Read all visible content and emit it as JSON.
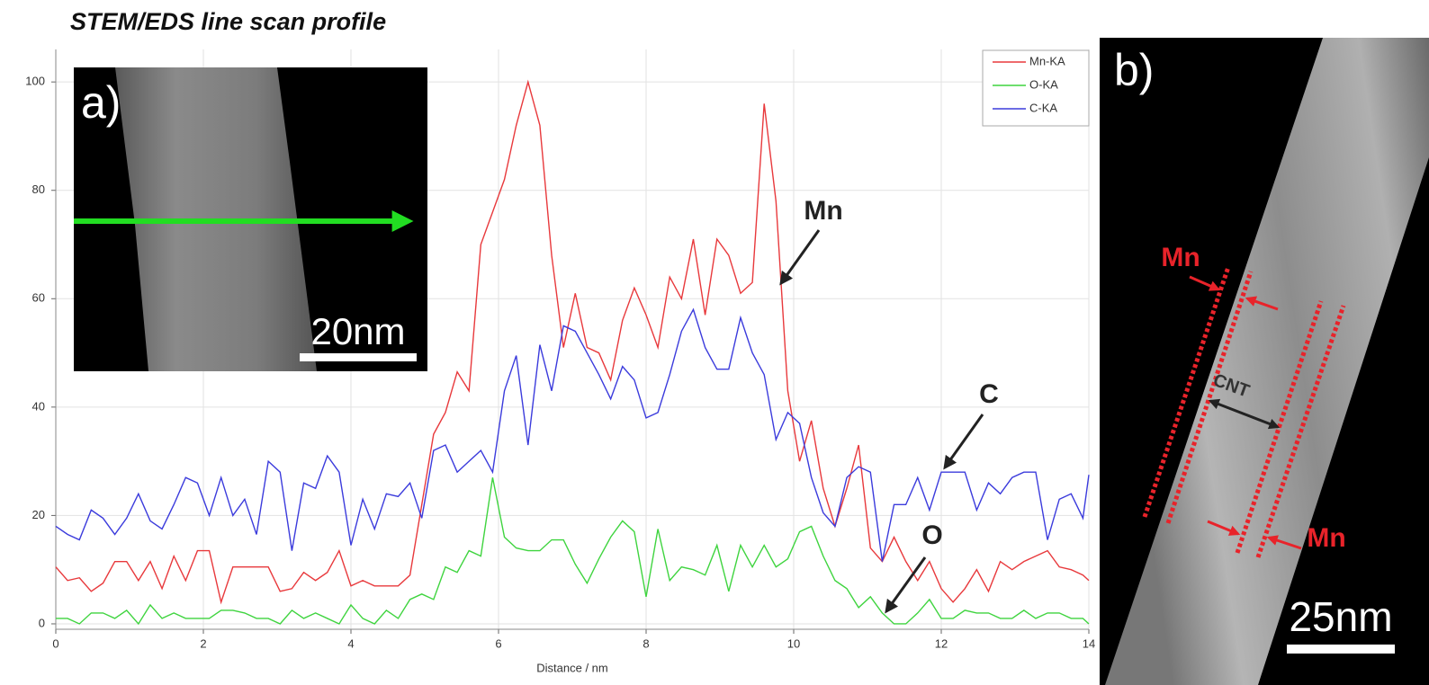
{
  "chart_data": {
    "type": "line",
    "title": "STEM/EDS line scan profile",
    "x_label": "Distance / nm",
    "xlim": [
      0,
      14
    ],
    "ylim": [
      -1,
      106
    ],
    "xticks": [
      0,
      2,
      4,
      6,
      8,
      10,
      12,
      14
    ],
    "yticks": [
      0,
      20,
      40,
      60,
      80,
      100
    ],
    "grid": true,
    "legend": "upper right",
    "x": [
      0,
      0.16,
      0.32,
      0.48,
      0.64,
      0.8,
      0.96,
      1.12,
      1.28,
      1.44,
      1.6,
      1.76,
      1.92,
      2.08,
      2.24,
      2.4,
      2.56,
      2.72,
      2.88,
      3.04,
      3.2,
      3.36,
      3.52,
      3.68,
      3.84,
      4,
      4.16,
      4.32,
      4.48,
      4.64,
      4.8,
      4.96,
      5.12,
      5.28,
      5.44,
      5.6,
      5.76,
      5.92,
      6.08,
      6.24,
      6.4,
      6.56,
      6.72,
      6.88,
      7.04,
      7.2,
      7.36,
      7.52,
      7.68,
      7.84,
      8,
      8.16,
      8.32,
      8.48,
      8.64,
      8.8,
      8.96,
      9.12,
      9.28,
      9.44,
      9.6,
      9.76,
      9.92,
      10.08,
      10.24,
      10.4,
      10.56,
      10.72,
      10.88,
      11.04,
      11.2,
      11.36,
      11.52,
      11.68,
      11.84,
      12,
      12.16,
      12.32,
      12.48,
      12.64,
      12.8,
      12.96,
      13.12,
      13.28,
      13.44,
      13.6,
      13.76,
      13.92,
      14
    ],
    "series": [
      {
        "name": "Mn-KA",
        "color": "#e8393c",
        "values": [
          10.5,
          8,
          8.5,
          6,
          7.5,
          11.5,
          11.5,
          8,
          11.5,
          6.5,
          12.5,
          8,
          13.5,
          13.5,
          4,
          10.5,
          10.5,
          10.5,
          10.5,
          6,
          6.5,
          9.5,
          8,
          9.5,
          13.5,
          7,
          8,
          7,
          7,
          7,
          9,
          22,
          35,
          39,
          46.5,
          43,
          70,
          76,
          82,
          92,
          100,
          92,
          68,
          51,
          61,
          51,
          50,
          45,
          56,
          62,
          57,
          51,
          64,
          60,
          71,
          57,
          71,
          68,
          61,
          63,
          96,
          78,
          43,
          30,
          37.5,
          25,
          18,
          25,
          33,
          14,
          11.5,
          16,
          11.5,
          8,
          11.5,
          6.5,
          4,
          6.5,
          10,
          6,
          11.5,
          10,
          11.5,
          12.5,
          13.5,
          10.5,
          10,
          9,
          8
        ]
      },
      {
        "name": "O-KA",
        "color": "#3fd43f",
        "values": [
          1,
          1,
          0,
          2,
          2,
          1,
          2.5,
          0,
          3.5,
          1,
          2,
          1,
          1,
          1,
          2.5,
          2.5,
          2,
          1,
          1,
          0,
          2.5,
          1,
          2,
          1,
          0,
          3.5,
          1,
          0,
          2.5,
          1,
          4.5,
          5.5,
          4.5,
          10.5,
          9.5,
          13.5,
          12.5,
          27,
          16,
          14,
          13.5,
          13.5,
          15.5,
          15.5,
          11,
          7.5,
          12,
          16,
          19,
          17,
          5,
          17.5,
          8,
          10.5,
          10,
          9,
          14.5,
          6,
          14.5,
          10.5,
          14.5,
          10.5,
          12,
          17,
          18,
          12.5,
          8,
          6.5,
          3,
          5,
          2,
          0,
          0,
          2,
          4.5,
          1,
          1,
          2.5,
          2,
          2,
          1,
          1,
          2.5,
          1,
          2,
          2,
          1,
          1,
          0
        ]
      },
      {
        "name": "C-KA",
        "color": "#3b3bdc",
        "values": [
          18,
          16.5,
          15.5,
          21,
          19.5,
          16.5,
          19.5,
          24,
          19,
          17.5,
          22,
          27,
          26,
          20,
          27,
          20,
          23,
          16.5,
          30,
          28,
          13.5,
          26,
          25,
          31,
          28,
          14.5,
          23,
          17.5,
          24,
          23.5,
          26,
          19.5,
          32,
          33,
          28,
          30,
          32,
          28,
          43,
          49.5,
          33,
          51.5,
          43,
          55,
          54,
          50,
          46,
          41.5,
          47.5,
          45,
          38,
          39,
          46,
          54,
          58,
          51,
          47,
          47,
          56.5,
          50,
          46,
          34,
          39,
          37,
          27,
          20.5,
          18,
          27,
          29,
          28,
          11.5,
          22,
          22,
          27,
          21,
          28,
          28,
          28,
          21,
          26,
          24,
          27,
          28,
          28,
          15.5,
          23,
          24,
          19.5,
          27.5
        ]
      }
    ],
    "annotations": [
      "Mn",
      "C",
      "O"
    ]
  },
  "inset_a": {
    "label": "a)",
    "scale_bar": "20nm"
  },
  "panel_b": {
    "label": "b)",
    "scale_bar": "25nm",
    "mn_top": "Mn",
    "mn_bottom": "Mn",
    "cnt": "CNT"
  }
}
